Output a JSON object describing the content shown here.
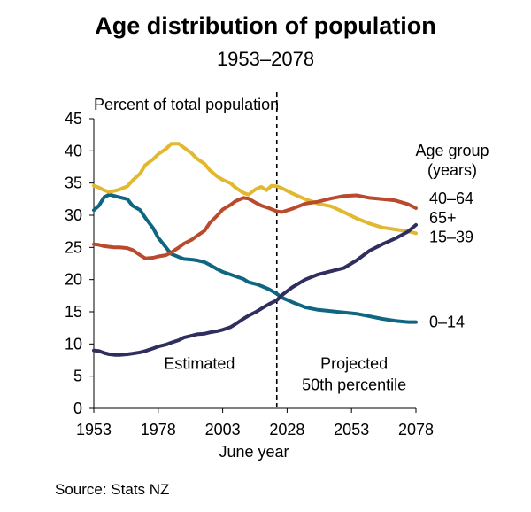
{
  "title": "Age distribution of population",
  "subtitle": "1953–2078",
  "source": "Source: Stats NZ",
  "chart_data": {
    "type": "line",
    "title": "Age distribution of population",
    "subtitle": "1953–2078",
    "ylabel": "Percent of total population",
    "xlabel": "June year",
    "xlim": [
      1953,
      2078
    ],
    "ylim": [
      0,
      45
    ],
    "xticks": [
      1953,
      1978,
      2003,
      2028,
      2053,
      2078
    ],
    "yticks": [
      0,
      5,
      10,
      15,
      20,
      25,
      30,
      35,
      40,
      45
    ],
    "grid": false,
    "legend_title": "Age group\n(years)",
    "divider_year": 2024,
    "region_labels": {
      "left": "Estimated",
      "right_line1": "Projected",
      "right_line2": "50th percentile"
    },
    "series": [
      {
        "name": "0–14",
        "color": "#0E6680",
        "points": [
          [
            1953,
            30.8
          ],
          [
            1955,
            31.5
          ],
          [
            1957,
            32.8
          ],
          [
            1959,
            33.2
          ],
          [
            1961,
            33.0
          ],
          [
            1963,
            32.8
          ],
          [
            1966,
            32.5
          ],
          [
            1968,
            31.5
          ],
          [
            1971,
            30.8
          ],
          [
            1973,
            29.6
          ],
          [
            1976,
            28.0
          ],
          [
            1978,
            26.5
          ],
          [
            1981,
            25.0
          ],
          [
            1983,
            24.0
          ],
          [
            1986,
            23.5
          ],
          [
            1988,
            23.2
          ],
          [
            1991,
            23.1
          ],
          [
            1993,
            23.0
          ],
          [
            1996,
            22.7
          ],
          [
            1998,
            22.3
          ],
          [
            2001,
            21.6
          ],
          [
            2003,
            21.2
          ],
          [
            2006,
            20.8
          ],
          [
            2008,
            20.5
          ],
          [
            2011,
            20.1
          ],
          [
            2013,
            19.6
          ],
          [
            2016,
            19.3
          ],
          [
            2018,
            19.0
          ],
          [
            2021,
            18.5
          ],
          [
            2024,
            17.8
          ],
          [
            2026,
            17.2
          ],
          [
            2030,
            16.5
          ],
          [
            2035,
            15.7
          ],
          [
            2040,
            15.3
          ],
          [
            2045,
            15.1
          ],
          [
            2050,
            14.9
          ],
          [
            2055,
            14.7
          ],
          [
            2060,
            14.3
          ],
          [
            2065,
            13.9
          ],
          [
            2070,
            13.6
          ],
          [
            2075,
            13.4
          ],
          [
            2078,
            13.4
          ]
        ]
      },
      {
        "name": "15–39",
        "color": "#E1B82F",
        "points": [
          [
            1953,
            34.6
          ],
          [
            1955,
            34.3
          ],
          [
            1957,
            33.9
          ],
          [
            1959,
            33.6
          ],
          [
            1961,
            33.8
          ],
          [
            1963,
            34.0
          ],
          [
            1966,
            34.5
          ],
          [
            1968,
            35.4
          ],
          [
            1971,
            36.5
          ],
          [
            1973,
            37.8
          ],
          [
            1976,
            38.7
          ],
          [
            1978,
            39.5
          ],
          [
            1981,
            40.3
          ],
          [
            1983,
            41.1
          ],
          [
            1986,
            41.1
          ],
          [
            1988,
            40.5
          ],
          [
            1991,
            39.6
          ],
          [
            1993,
            38.8
          ],
          [
            1996,
            38.0
          ],
          [
            1998,
            37.0
          ],
          [
            2001,
            36.0
          ],
          [
            2003,
            35.5
          ],
          [
            2006,
            35.0
          ],
          [
            2008,
            34.3
          ],
          [
            2011,
            33.5
          ],
          [
            2013,
            33.2
          ],
          [
            2016,
            34.1
          ],
          [
            2018,
            34.4
          ],
          [
            2020,
            33.9
          ],
          [
            2022,
            34.6
          ],
          [
            2024,
            34.5
          ],
          [
            2026,
            34.2
          ],
          [
            2030,
            33.4
          ],
          [
            2035,
            32.5
          ],
          [
            2040,
            31.8
          ],
          [
            2045,
            31.4
          ],
          [
            2050,
            30.5
          ],
          [
            2055,
            29.5
          ],
          [
            2060,
            28.7
          ],
          [
            2065,
            28.1
          ],
          [
            2070,
            27.8
          ],
          [
            2075,
            27.5
          ],
          [
            2078,
            27.2
          ]
        ]
      },
      {
        "name": "40–64",
        "color": "#B94A2E",
        "points": [
          [
            1953,
            25.5
          ],
          [
            1955,
            25.4
          ],
          [
            1957,
            25.2
          ],
          [
            1959,
            25.1
          ],
          [
            1961,
            25.0
          ],
          [
            1963,
            25.0
          ],
          [
            1966,
            24.9
          ],
          [
            1968,
            24.6
          ],
          [
            1971,
            23.8
          ],
          [
            1973,
            23.3
          ],
          [
            1976,
            23.4
          ],
          [
            1978,
            23.6
          ],
          [
            1981,
            23.8
          ],
          [
            1983,
            24.2
          ],
          [
            1986,
            25.0
          ],
          [
            1988,
            25.6
          ],
          [
            1991,
            26.2
          ],
          [
            1993,
            26.8
          ],
          [
            1996,
            27.6
          ],
          [
            1998,
            28.8
          ],
          [
            2001,
            30.0
          ],
          [
            2003,
            30.9
          ],
          [
            2006,
            31.6
          ],
          [
            2008,
            32.2
          ],
          [
            2011,
            32.7
          ],
          [
            2013,
            32.6
          ],
          [
            2016,
            31.9
          ],
          [
            2018,
            31.5
          ],
          [
            2021,
            31.1
          ],
          [
            2024,
            30.6
          ],
          [
            2026,
            30.5
          ],
          [
            2030,
            31.0
          ],
          [
            2035,
            31.8
          ],
          [
            2040,
            32.1
          ],
          [
            2045,
            32.6
          ],
          [
            2050,
            33.0
          ],
          [
            2055,
            33.1
          ],
          [
            2060,
            32.7
          ],
          [
            2065,
            32.5
          ],
          [
            2070,
            32.3
          ],
          [
            2075,
            31.7
          ],
          [
            2078,
            31.1
          ]
        ]
      },
      {
        "name": "65+",
        "color": "#302E5E",
        "points": [
          [
            1953,
            9.0
          ],
          [
            1955,
            8.9
          ],
          [
            1957,
            8.6
          ],
          [
            1959,
            8.4
          ],
          [
            1961,
            8.3
          ],
          [
            1963,
            8.3
          ],
          [
            1966,
            8.4
          ],
          [
            1968,
            8.5
          ],
          [
            1971,
            8.7
          ],
          [
            1973,
            8.9
          ],
          [
            1976,
            9.3
          ],
          [
            1978,
            9.6
          ],
          [
            1981,
            9.9
          ],
          [
            1983,
            10.2
          ],
          [
            1986,
            10.6
          ],
          [
            1988,
            11.0
          ],
          [
            1991,
            11.3
          ],
          [
            1993,
            11.5
          ],
          [
            1996,
            11.6
          ],
          [
            1998,
            11.8
          ],
          [
            2001,
            12.0
          ],
          [
            2003,
            12.2
          ],
          [
            2006,
            12.6
          ],
          [
            2008,
            13.1
          ],
          [
            2011,
            13.9
          ],
          [
            2013,
            14.4
          ],
          [
            2016,
            15.0
          ],
          [
            2018,
            15.5
          ],
          [
            2021,
            16.2
          ],
          [
            2024,
            16.8
          ],
          [
            2026,
            17.6
          ],
          [
            2030,
            18.8
          ],
          [
            2035,
            20.0
          ],
          [
            2040,
            20.8
          ],
          [
            2045,
            21.3
          ],
          [
            2050,
            21.8
          ],
          [
            2055,
            23.0
          ],
          [
            2060,
            24.5
          ],
          [
            2065,
            25.5
          ],
          [
            2070,
            26.4
          ],
          [
            2075,
            27.5
          ],
          [
            2078,
            28.5
          ]
        ]
      }
    ],
    "end_labels": [
      {
        "text": "40–64",
        "y": 32.6
      },
      {
        "text": "65+",
        "y": 29.6
      },
      {
        "text": "15–39",
        "y": 26.6
      },
      {
        "text": "0–14",
        "y": 13.4
      }
    ]
  }
}
